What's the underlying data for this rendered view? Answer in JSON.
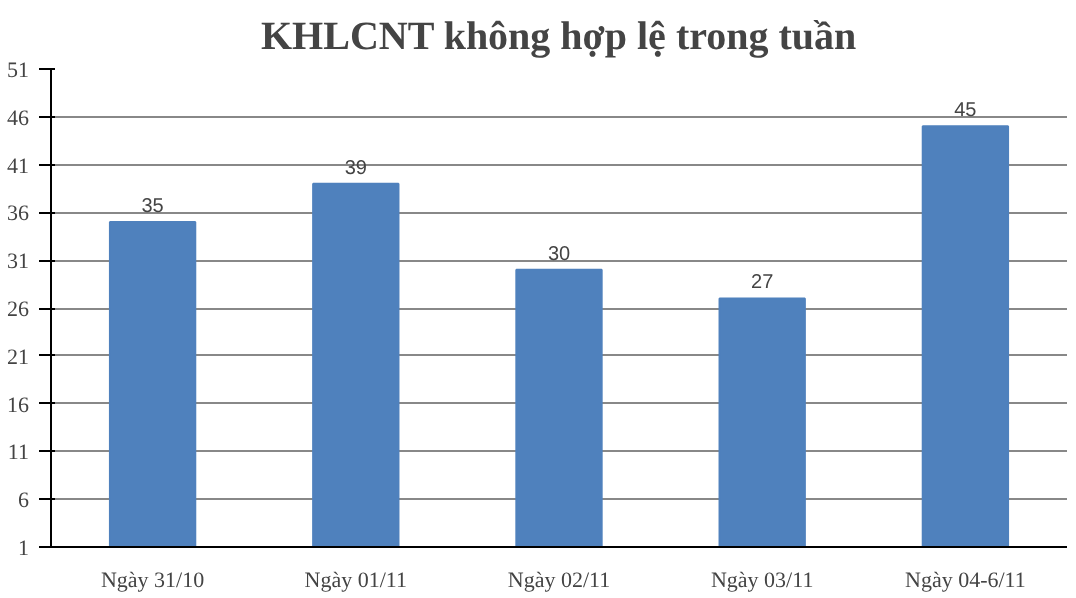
{
  "chart_data": {
    "type": "bar",
    "title": "KHLCNT không hợp lệ trong tuần",
    "categories": [
      "Ngày 31/10",
      "Ngày 01/11",
      "Ngày 02/11",
      "Ngày 03/11",
      "Ngày 04-6/11"
    ],
    "values": [
      35,
      39,
      30,
      27,
      45
    ],
    "color": "#4f81bd",
    "ylim": [
      1,
      51
    ],
    "yticks": [
      1,
      6,
      11,
      16,
      21,
      26,
      31,
      36,
      41,
      46,
      51
    ],
    "grid": "y",
    "data_labels": true
  }
}
